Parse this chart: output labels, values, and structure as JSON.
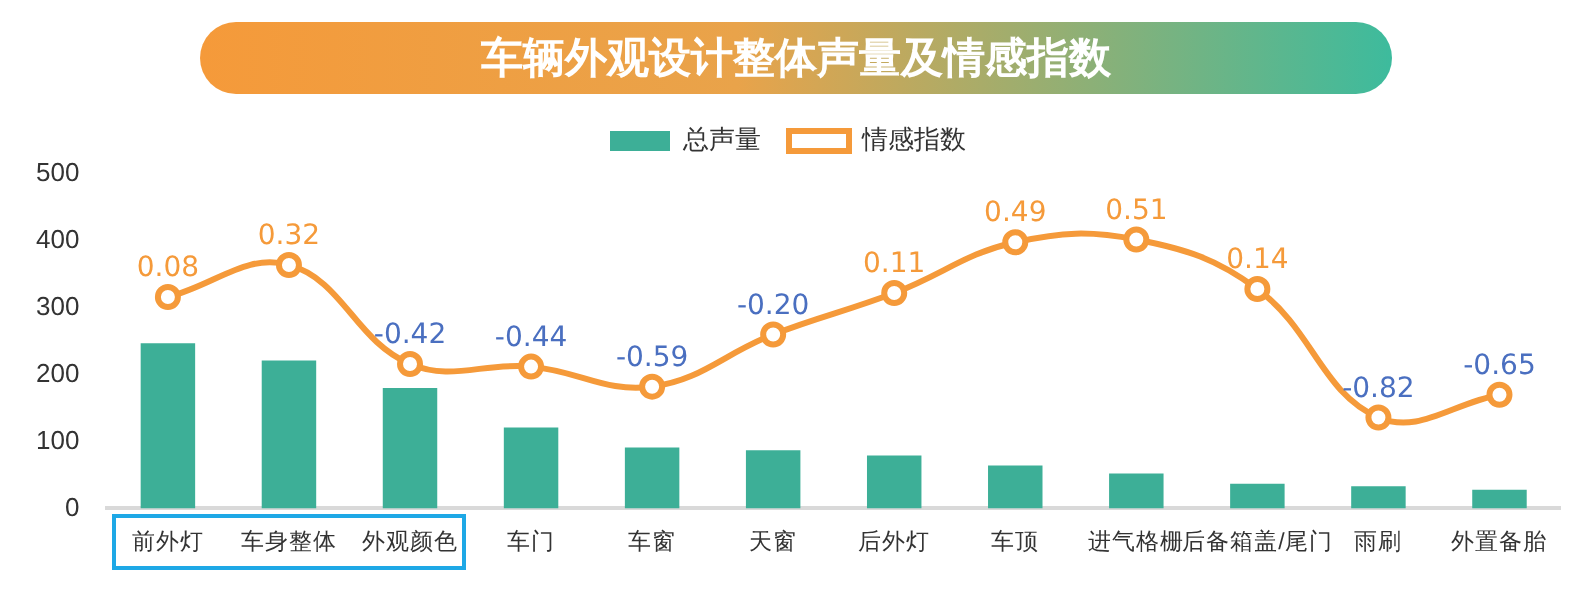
{
  "chart_data": {
    "type": "bar",
    "title": "车辆外观设计整体声量及情感指数",
    "categories": [
      "前外灯",
      "车身整体",
      "外观颜色",
      "车门",
      "车窗",
      "天窗",
      "后外灯",
      "车顶",
      "进气格栅",
      "后备箱盖/尾门",
      "雨刷",
      "外置备胎"
    ],
    "series": [
      {
        "name": "总声量",
        "color": "#3daf97",
        "values": [
          247,
          221,
          180,
          121,
          91,
          87,
          79,
          64,
          52,
          37,
          33,
          28
        ]
      },
      {
        "name": "情感指数",
        "type": "line",
        "axis": "y2",
        "color": "#f59a3a",
        "marker": "circle",
        "values": [
          0.08,
          0.32,
          -0.42,
          -0.44,
          -0.59,
          -0.2,
          0.11,
          0.49,
          0.51,
          0.14,
          -0.82,
          -0.65
        ],
        "value_labels": [
          "0.08",
          "0.32",
          "-0.42",
          "-0.44",
          "-0.59",
          "-0.20",
          "0.11",
          "0.49",
          "0.51",
          "0.14",
          "-0.82",
          "-0.65"
        ]
      }
    ],
    "ylim": [
      0,
      500
    ],
    "yticks": [
      0,
      100,
      200,
      300,
      400,
      500
    ],
    "grid": false,
    "legend": "top"
  }
}
